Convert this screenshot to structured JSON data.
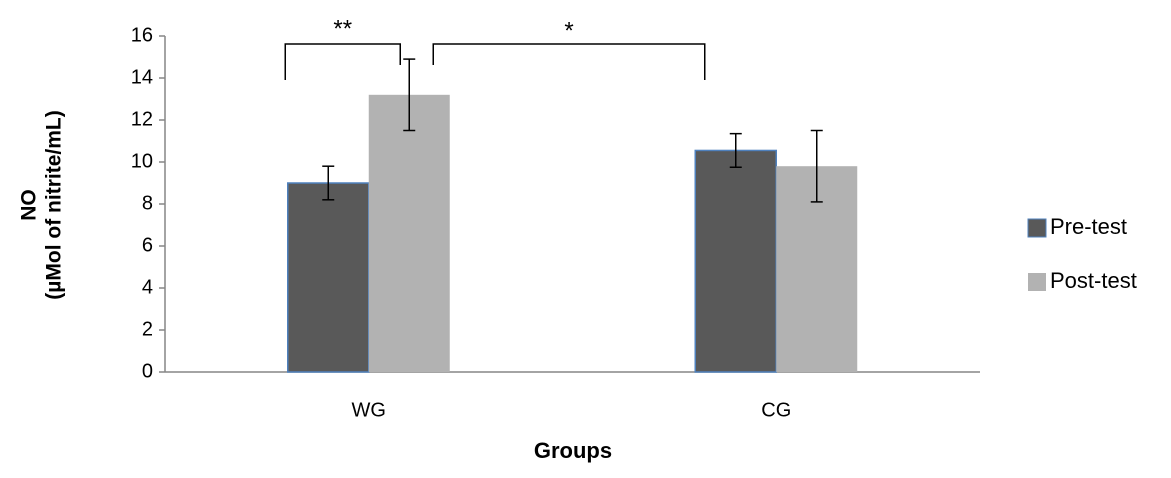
{
  "chart_data": {
    "type": "bar",
    "x_label": "Groups",
    "y_label": [
      "NO",
      "(µMol of nitrite/mL)"
    ],
    "categories": [
      "WG",
      "CG"
    ],
    "series": [
      {
        "name": "Pre-test",
        "color": "#595959",
        "values": [
          9.0,
          10.55
        ],
        "errors": [
          0.8,
          0.8
        ]
      },
      {
        "name": "Post-test",
        "color": "#b2b2b2",
        "values": [
          13.2,
          9.8
        ],
        "errors": [
          1.7,
          1.7
        ]
      }
    ],
    "ylim": [
      0,
      16
    ],
    "yticks": [
      0,
      2,
      4,
      6,
      8,
      10,
      12,
      14,
      16
    ],
    "legend": "right",
    "annotations": [
      "**",
      "*"
    ]
  }
}
